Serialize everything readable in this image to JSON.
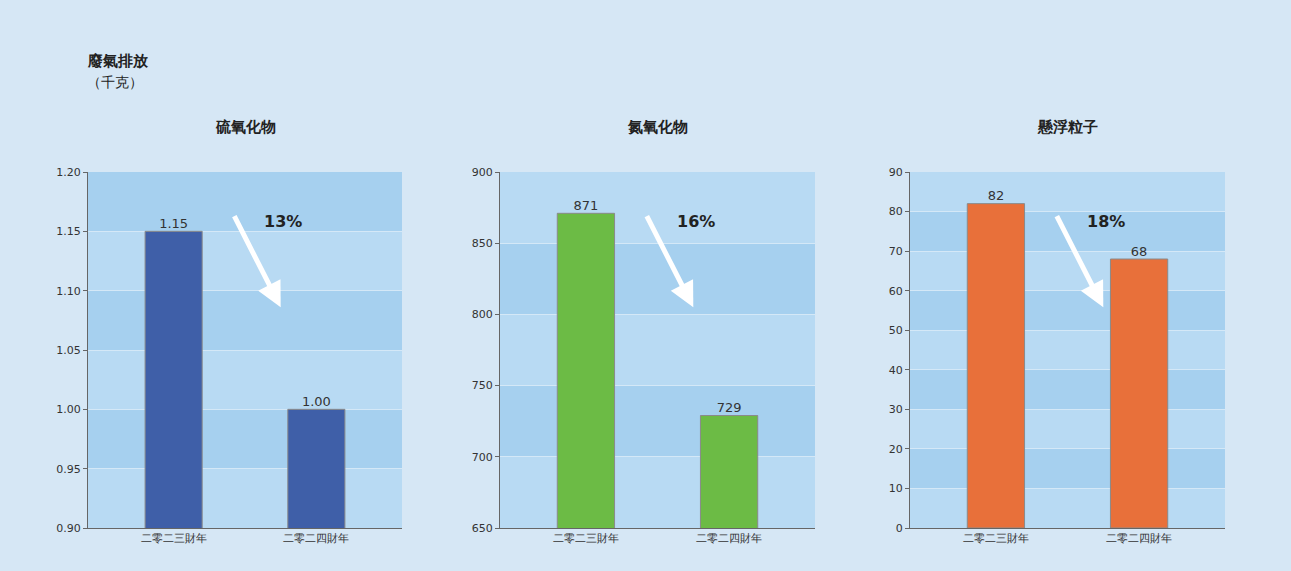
{
  "title": "廢氣排放",
  "subtitle": "（千克）",
  "chart_data": [
    {
      "type": "bar",
      "title": "硫氧化物",
      "categories": [
        "二零二三財年",
        "二零二四財年"
      ],
      "values": [
        1.15,
        1.0
      ],
      "value_labels": [
        "1.15",
        "1.00"
      ],
      "color": "#3f5fa8",
      "ylim": [
        0.9,
        1.2
      ],
      "yticks": [
        {
          "value": 0.9,
          "label": "0.90"
        },
        {
          "value": 0.95,
          "label": "0.95"
        },
        {
          "value": 1.0,
          "label": "1.00"
        },
        {
          "value": 1.05,
          "label": "1.05"
        },
        {
          "value": 1.1,
          "label": "1.10"
        },
        {
          "value": 1.15,
          "label": "1.15"
        },
        {
          "value": 1.2,
          "label": "1.20"
        }
      ],
      "grid": true,
      "data_labels": true,
      "annotations": [
        "13%"
      ]
    },
    {
      "type": "bar",
      "title": "氮氧化物",
      "categories": [
        "二零二三財年",
        "二零二四財年"
      ],
      "values": [
        871,
        729
      ],
      "color": "#6cbb45",
      "ylim": [
        650,
        900
      ],
      "yticks": [
        650,
        700,
        750,
        800,
        850,
        900
      ],
      "grid": true,
      "data_labels": true,
      "annotations": [
        "16%"
      ]
    },
    {
      "type": "bar",
      "title": "懸浮粒子",
      "categories": [
        "二零二三財年",
        "二零二四財年"
      ],
      "values": [
        82,
        68
      ],
      "color": "#e8703a",
      "ylim": [
        0,
        90
      ],
      "yticks": [
        0,
        10,
        20,
        30,
        40,
        50,
        60,
        70,
        80,
        90
      ],
      "grid": true,
      "data_labels": true,
      "annotations": [
        "18%"
      ]
    }
  ]
}
